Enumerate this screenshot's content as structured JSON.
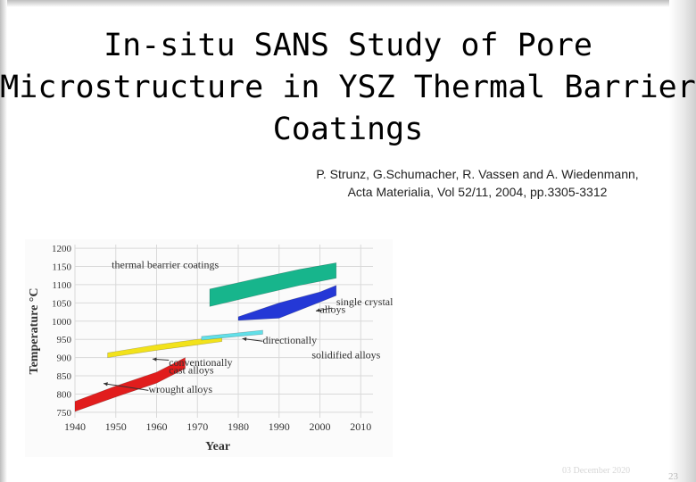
{
  "slide": {
    "title_lines": [
      "In-situ SANS Study of Pore",
      "Microstructure in YSZ Thermal Barrier",
      "Coatings"
    ],
    "citation_lines": [
      "P. Strunz, G.Schumacher, R. Vassen and A. Wiedenmann,",
      "Acta Materialia, Vol 52/11, 2004, pp.3305-3312"
    ],
    "footer_date": "03 December 2020",
    "slide_number": "23"
  },
  "chart_data": {
    "type": "area",
    "xlabel": "Year",
    "ylabel": "Temperature °C",
    "xlim": [
      1940,
      2013
    ],
    "ylim": [
      735,
      1210
    ],
    "x_ticks": [
      1940,
      1950,
      1960,
      1970,
      1980,
      1990,
      2000,
      2010
    ],
    "y_ticks": [
      750,
      800,
      850,
      900,
      950,
      1000,
      1050,
      1100,
      1150,
      1200
    ],
    "grid": true,
    "series": [
      {
        "name": "wrought alloys",
        "color": "#e11d1d",
        "upper": [
          [
            1940,
            780
          ],
          [
            1950,
            822
          ],
          [
            1960,
            860
          ],
          [
            1967,
            900
          ]
        ],
        "lower": [
          [
            1940,
            752
          ],
          [
            1950,
            792
          ],
          [
            1960,
            830
          ],
          [
            1967,
            870
          ]
        ]
      },
      {
        "name": "conventionally cast alloys",
        "color": "#f2e21b",
        "upper": [
          [
            1948,
            913
          ],
          [
            1960,
            935
          ],
          [
            1970,
            950
          ],
          [
            1976,
            957
          ]
        ],
        "lower": [
          [
            1948,
            900
          ],
          [
            1960,
            920
          ],
          [
            1970,
            935
          ],
          [
            1976,
            944
          ]
        ]
      },
      {
        "name": "directionally solidified alloys",
        "color": "#62dfe8",
        "upper": [
          [
            1971,
            958
          ],
          [
            1980,
            968
          ],
          [
            1986,
            975
          ]
        ],
        "lower": [
          [
            1971,
            948
          ],
          [
            1980,
            958
          ],
          [
            1986,
            964
          ]
        ]
      },
      {
        "name": "single crystal alloys",
        "color": "#2438d6",
        "upper": [
          [
            1980,
            1012
          ],
          [
            1990,
            1050
          ],
          [
            2000,
            1080
          ],
          [
            2004,
            1098
          ]
        ],
        "lower": [
          [
            1980,
            1002
          ],
          [
            1990,
            1008
          ],
          [
            2000,
            1052
          ],
          [
            2004,
            1070
          ]
        ]
      },
      {
        "name": "thermal bearrier coatings",
        "color": "#17b58c",
        "upper": [
          [
            1973,
            1088
          ],
          [
            1985,
            1118
          ],
          [
            1995,
            1142
          ],
          [
            2004,
            1160
          ]
        ],
        "lower": [
          [
            1973,
            1040
          ],
          [
            1985,
            1072
          ],
          [
            1995,
            1098
          ],
          [
            2004,
            1118
          ]
        ]
      }
    ],
    "annotations": [
      {
        "text": "thermal bearrier coatings",
        "x": 1949,
        "y": 1145
      },
      {
        "text": "single crystal",
        "x": 2004,
        "y": 1043
      },
      {
        "text": "alloys",
        "x": 2000,
        "y": 1023
      },
      {
        "text": "directionally",
        "x": 1986,
        "y": 938
      },
      {
        "text": "solidified alloys",
        "x": 1998,
        "y": 898
      },
      {
        "text": "conventionally",
        "x": 1963,
        "y": 877
      },
      {
        "text": "cast alloys",
        "x": 1963,
        "y": 856
      },
      {
        "text": "wrought alloys",
        "x": 1958,
        "y": 803
      }
    ],
    "arrows": [
      {
        "from": [
          2003,
          1036
        ],
        "to": [
          1999,
          1028
        ]
      },
      {
        "from": [
          1986,
          945
        ],
        "to": [
          1981,
          952
        ]
      },
      {
        "from": [
          1963,
          893
        ],
        "to": [
          1959,
          896
        ]
      },
      {
        "from": [
          1958,
          810
        ],
        "to": [
          1947,
          829
        ]
      }
    ]
  }
}
